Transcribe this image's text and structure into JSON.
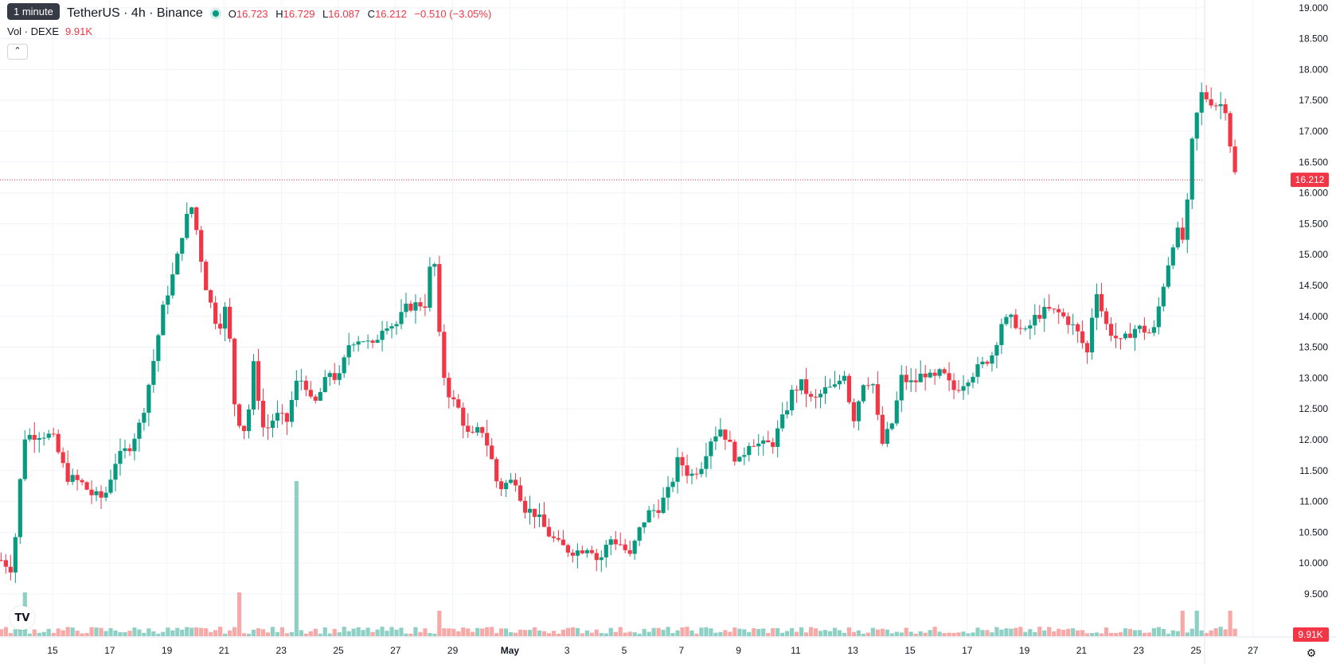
{
  "header": {
    "tooltip": "1 minute",
    "title": "TetherUS · 4h · Binance",
    "open_label": "O",
    "open": "16.723",
    "high_label": "H",
    "high": "16.729",
    "low_label": "L",
    "low": "16.087",
    "close_label": "C",
    "close": "16.212",
    "change": "−0.510 (−3.05%)"
  },
  "volume_legend": {
    "label": "Vol · DEXE",
    "value": "9.91K"
  },
  "colors": {
    "up": "#089981",
    "down": "#f23645",
    "grid": "#f0f3fa",
    "axis_text": "#131722"
  },
  "icons": {
    "collapse": "chevron-up-icon",
    "logo": "tradingview-logo-icon",
    "settings": "gear-icon"
  },
  "chart_data": {
    "type": "candlestick",
    "symbol": "DEXE/USDT",
    "interval": "4h",
    "y_ticks": [
      "9.500",
      "10.000",
      "10.500",
      "11.000",
      "11.500",
      "12.000",
      "12.500",
      "13.000",
      "13.500",
      "14.000",
      "14.500",
      "15.000",
      "15.500",
      "16.000",
      "16.500",
      "17.000",
      "17.500",
      "18.000",
      "18.500",
      "19.000"
    ],
    "ylim": [
      9.1,
      19.1
    ],
    "x_ticks": [
      {
        "label": "15",
        "day": 15
      },
      {
        "label": "17",
        "day": 17
      },
      {
        "label": "19",
        "day": 19
      },
      {
        "label": "21",
        "day": 21
      },
      {
        "label": "23",
        "day": 23
      },
      {
        "label": "25",
        "day": 25
      },
      {
        "label": "27",
        "day": 27
      },
      {
        "label": "29",
        "day": 29
      },
      {
        "label": "May",
        "day": 31
      },
      {
        "label": "3",
        "day": 33
      },
      {
        "label": "5",
        "day": 35
      },
      {
        "label": "7",
        "day": 37
      },
      {
        "label": "9",
        "day": 39
      },
      {
        "label": "11",
        "day": 41
      },
      {
        "label": "13",
        "day": 43
      },
      {
        "label": "15",
        "day": 45
      },
      {
        "label": "17",
        "day": 47
      },
      {
        "label": "19",
        "day": 49
      },
      {
        "label": "21",
        "day": 51
      },
      {
        "label": "23",
        "day": 53
      },
      {
        "label": "25",
        "day": 55
      },
      {
        "label": "27",
        "day": 57
      }
    ],
    "last_price": "16.212",
    "last_volume": "9.91K",
    "close_series": [
      [
        13.2,
        10.05
      ],
      [
        13.6,
        9.9
      ],
      [
        14.0,
        12.05
      ],
      [
        14.6,
        12.1
      ],
      [
        15.0,
        12.05
      ],
      [
        15.5,
        11.4
      ],
      [
        16.0,
        11.3
      ],
      [
        16.4,
        11.1
      ],
      [
        16.8,
        11.05
      ],
      [
        17.2,
        11.65
      ],
      [
        17.7,
        11.9
      ],
      [
        18.1,
        12.3
      ],
      [
        18.5,
        13.2
      ],
      [
        18.9,
        14.2
      ],
      [
        19.3,
        14.8
      ],
      [
        19.6,
        15.5
      ],
      [
        19.9,
        15.8
      ],
      [
        20.1,
        15.2
      ],
      [
        20.4,
        14.4
      ],
      [
        20.8,
        13.8
      ],
      [
        21.1,
        14.2
      ],
      [
        21.4,
        12.4
      ],
      [
        21.8,
        12.1
      ],
      [
        22.0,
        13.3
      ],
      [
        22.4,
        12.1
      ],
      [
        22.8,
        12.4
      ],
      [
        23.2,
        12.3
      ],
      [
        23.5,
        12.9
      ],
      [
        23.8,
        13.0
      ],
      [
        24.1,
        12.5
      ],
      [
        24.4,
        12.8
      ],
      [
        24.7,
        13.1
      ],
      [
        25.0,
        12.95
      ],
      [
        25.4,
        13.6
      ],
      [
        25.8,
        13.65
      ],
      [
        26.2,
        13.5
      ],
      [
        26.6,
        13.9
      ],
      [
        27.0,
        13.85
      ],
      [
        27.4,
        14.15
      ],
      [
        27.8,
        14.2
      ],
      [
        28.1,
        14.2
      ],
      [
        28.3,
        15.3
      ],
      [
        28.6,
        13.2
      ],
      [
        28.9,
        12.7
      ],
      [
        29.2,
        12.5
      ],
      [
        29.6,
        12.0
      ],
      [
        30.0,
        12.2
      ],
      [
        30.3,
        11.8
      ],
      [
        30.6,
        11.2
      ],
      [
        30.9,
        11.3
      ],
      [
        31.2,
        11.35
      ],
      [
        31.5,
        10.9
      ],
      [
        31.9,
        10.8
      ],
      [
        32.3,
        10.5
      ],
      [
        32.7,
        10.3
      ],
      [
        33.1,
        10.2
      ],
      [
        33.4,
        10.2
      ],
      [
        33.8,
        10.3
      ],
      [
        34.1,
        10.0
      ],
      [
        34.5,
        10.4
      ],
      [
        34.9,
        10.3
      ],
      [
        35.2,
        10.1
      ],
      [
        35.5,
        10.5
      ],
      [
        35.8,
        10.8
      ],
      [
        36.2,
        10.9
      ],
      [
        36.6,
        11.2
      ],
      [
        36.9,
        11.7
      ],
      [
        37.3,
        11.4
      ],
      [
        37.7,
        11.6
      ],
      [
        38.0,
        12.0
      ],
      [
        38.4,
        12.2
      ],
      [
        38.7,
        11.9
      ],
      [
        39.0,
        11.6
      ],
      [
        39.4,
        12.0
      ],
      [
        39.8,
        11.9
      ],
      [
        40.2,
        11.95
      ],
      [
        40.6,
        12.4
      ],
      [
        40.9,
        12.8
      ],
      [
        41.2,
        12.9
      ],
      [
        41.6,
        12.6
      ],
      [
        42.0,
        12.8
      ],
      [
        42.4,
        12.85
      ],
      [
        42.7,
        13.1
      ],
      [
        43.0,
        12.3
      ],
      [
        43.4,
        13.0
      ],
      [
        43.7,
        12.9
      ],
      [
        44.0,
        11.9
      ],
      [
        44.4,
        12.3
      ],
      [
        44.7,
        13.0
      ],
      [
        45.1,
        12.9
      ],
      [
        45.5,
        13.1
      ],
      [
        45.8,
        12.95
      ],
      [
        46.1,
        13.1
      ],
      [
        46.5,
        12.8
      ],
      [
        46.8,
        12.9
      ],
      [
        47.1,
        13.05
      ],
      [
        47.5,
        13.2
      ],
      [
        47.9,
        13.4
      ],
      [
        48.2,
        13.9
      ],
      [
        48.6,
        13.95
      ],
      [
        49.0,
        13.7
      ],
      [
        49.4,
        14.0
      ],
      [
        49.8,
        14.1
      ],
      [
        50.2,
        14.05
      ],
      [
        50.6,
        13.9
      ],
      [
        50.9,
        13.7
      ],
      [
        51.2,
        13.4
      ],
      [
        51.5,
        14.5
      ],
      [
        51.8,
        13.9
      ],
      [
        52.1,
        13.7
      ],
      [
        52.4,
        13.55
      ],
      [
        52.8,
        13.8
      ],
      [
        53.1,
        13.8
      ],
      [
        53.5,
        13.7
      ],
      [
        53.9,
        14.6
      ],
      [
        54.3,
        15.4
      ],
      [
        54.6,
        15.2
      ],
      [
        54.9,
        17.0
      ],
      [
        55.2,
        17.6
      ],
      [
        55.5,
        17.5
      ],
      [
        55.8,
        17.4
      ],
      [
        56.0,
        17.5
      ],
      [
        56.2,
        16.8
      ],
      [
        56.4,
        16.212
      ]
    ],
    "volume_series": [
      [
        14.0,
        "up",
        "high"
      ],
      [
        21.5,
        "down",
        "high"
      ],
      [
        23.55,
        "down",
        "spike"
      ],
      [
        28.6,
        "down",
        "med"
      ],
      [
        54.5,
        "up",
        "med"
      ],
      [
        55.0,
        "up",
        "med"
      ],
      [
        56.2,
        "down",
        "med"
      ]
    ]
  }
}
